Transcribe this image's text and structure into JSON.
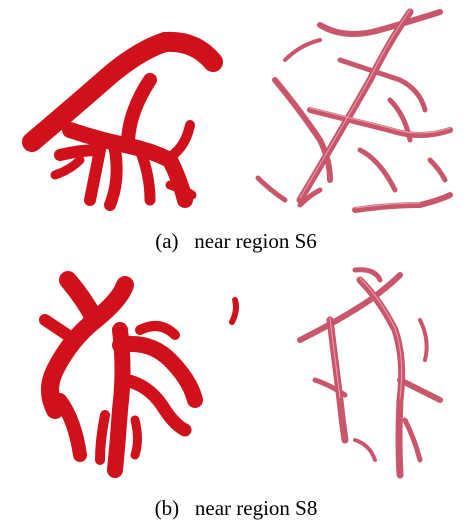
{
  "figure": {
    "panels": [
      {
        "label": "(a)",
        "caption": "near region S6"
      },
      {
        "label": "(b)",
        "caption": "near region S8"
      }
    ]
  }
}
